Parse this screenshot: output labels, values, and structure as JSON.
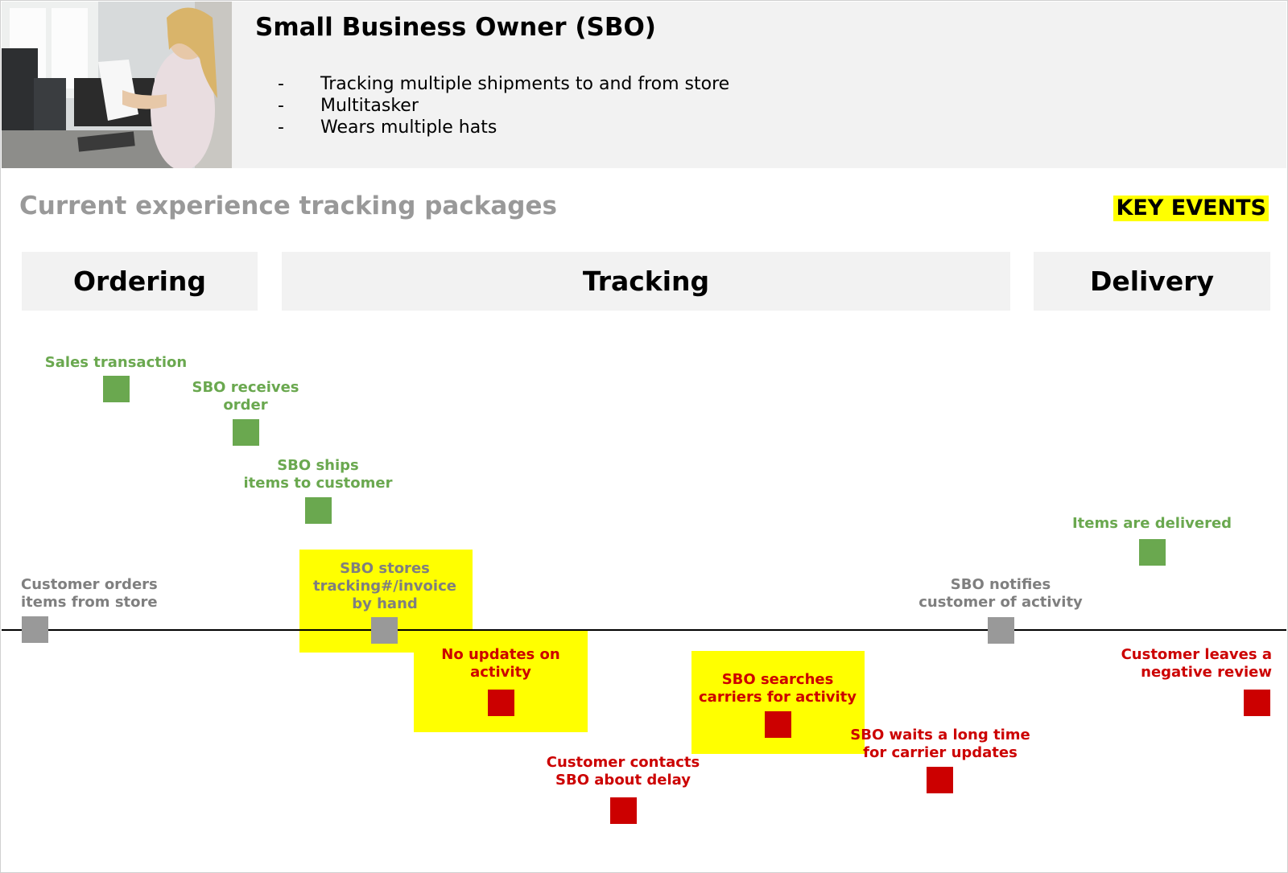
{
  "persona": {
    "title": "Small Business Owner (SBO)",
    "bullets": [
      "Tracking multiple shipments to and from store",
      "Multitasker",
      "Wears multiple hats"
    ]
  },
  "diagram": {
    "title": "Current experience tracking packages",
    "key_label": "KEY EVENTS",
    "phases": [
      "Ordering",
      "Tracking",
      "Delivery"
    ],
    "events": {
      "sales_transaction": "Sales transaction",
      "sbo_receives_order": "SBO receives\norder",
      "sbo_ships_items": "SBO ships\nitems to customer",
      "items_delivered": "Items are delivered",
      "customer_orders": "Customer orders\nitems from store",
      "sbo_stores_tracking": "SBO stores\ntracking#/invoice\nby hand",
      "sbo_notifies": "SBO notifies\ncustomer of activity",
      "no_updates": "No updates on\nactivity",
      "customer_contacts": "Customer contacts\nSBO about delay",
      "sbo_searches": "SBO searches\ncarriers for activity",
      "sbo_waits": "SBO waits a long time\nfor carrier updates",
      "negative_review": "Customer leaves a\nnegative review"
    },
    "colors": {
      "positive": "#6aa84f",
      "neutral": "#999999",
      "negative": "#cc0000",
      "positive_text": "#6aa84f",
      "neutral_text": "#7f7f7f",
      "negative_text": "#cc0000",
      "highlight": "#ffff00"
    }
  }
}
